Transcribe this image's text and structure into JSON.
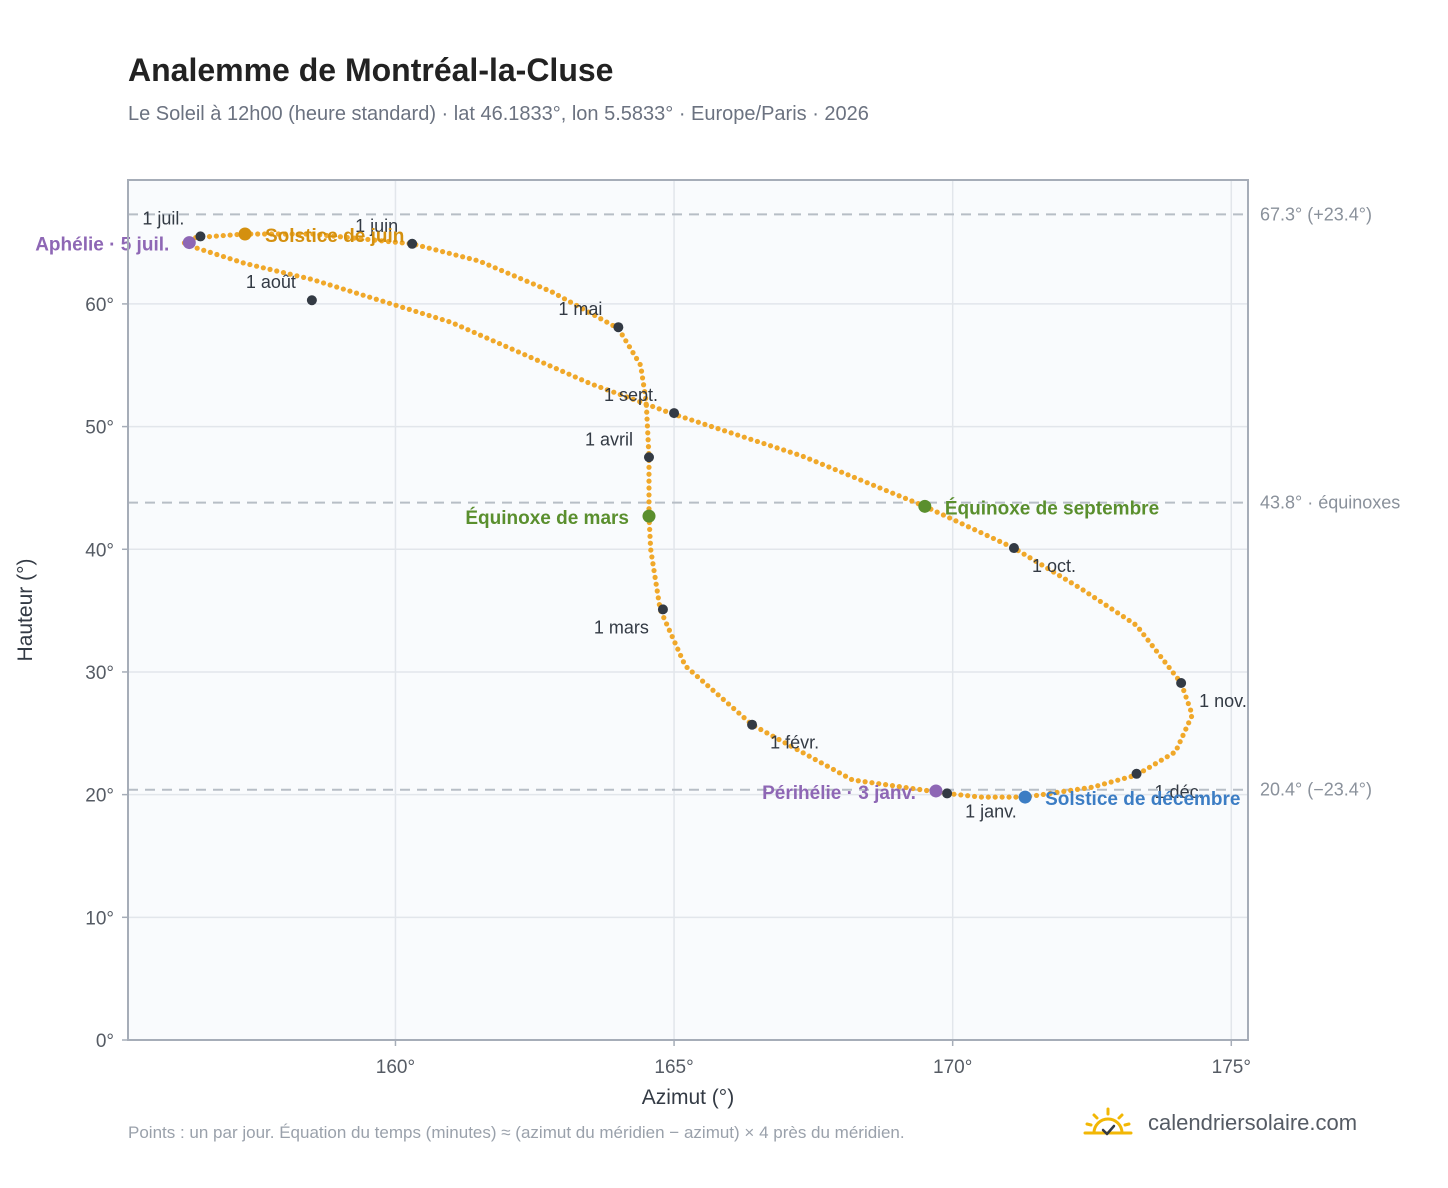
{
  "header": {
    "title": "Analemme de Montréal-la-Cluse",
    "subtitle": "Le Soleil à 12h00 (heure standard) · lat 46.1833°, lon 5.5833° · Europe/Paris · 2026"
  },
  "footer": {
    "note": "Points : un par jour. Équation du temps (minutes) ≈ (azimut du méridien − azimut) × 4 près du méridien.",
    "brand": "calendriersolaire.com"
  },
  "colors": {
    "path": "#f0a82a",
    "monthMarker": "#333a44",
    "solsticeJune": "#d4900f",
    "solsticeDecember": "#3c7dc4",
    "equinox": "#5a8f2e",
    "apsis": "#8e67b5",
    "grid": "#e2e6eb",
    "frame": "#a6adb8",
    "refLine": "#b7bec6",
    "plotBg": "#f9fbfd",
    "brandSun": "#f2b705"
  },
  "icons": {
    "brand": "sun-check-icon"
  },
  "chart_data": {
    "type": "scatter",
    "xlabel": "Azimut (°)",
    "ylabel": "Hauteur (°)",
    "xlim": [
      155.2,
      175.3
    ],
    "ylim": [
      0,
      70.1
    ],
    "xticks": [
      160,
      165,
      170,
      175
    ],
    "xtick_labels": [
      "160°",
      "165°",
      "170°",
      "175°"
    ],
    "yticks": [
      0,
      10,
      20,
      30,
      40,
      50,
      60
    ],
    "ytick_labels": [
      "0°",
      "10°",
      "20°",
      "30°",
      "40°",
      "50°",
      "60°"
    ],
    "grid": true,
    "reference_lines": [
      {
        "y": 67.3,
        "label": "67.3° (+23.4°)"
      },
      {
        "y": 43.8,
        "label": "43.8° · équinoxes"
      },
      {
        "y": 20.4,
        "label": "20.4° (−23.4°)"
      }
    ],
    "analemma_path": [
      [
        169.9,
        20.1
      ],
      [
        168.2,
        21.2
      ],
      [
        166.4,
        25.7
      ],
      [
        165.2,
        30.5
      ],
      [
        164.75,
        35.1
      ],
      [
        164.58,
        40.0
      ],
      [
        164.55,
        42.7
      ],
      [
        164.55,
        47.5
      ],
      [
        164.5,
        52.0
      ],
      [
        164.4,
        55.0
      ],
      [
        164.0,
        58.0
      ],
      [
        162.8,
        61.0
      ],
      [
        161.5,
        63.5
      ],
      [
        160.3,
        64.9
      ],
      [
        158.5,
        65.7
      ],
      [
        157.3,
        65.7
      ],
      [
        156.4,
        65.4
      ],
      [
        156.2,
        65.0
      ],
      [
        156.4,
        64.6
      ],
      [
        157.3,
        63.3
      ],
      [
        158.5,
        62.0
      ],
      [
        161.0,
        58.5
      ],
      [
        163.5,
        53.5
      ],
      [
        165.0,
        51.0
      ],
      [
        167.3,
        47.6
      ],
      [
        169.5,
        43.5
      ],
      [
        171.1,
        40.1
      ],
      [
        172.3,
        36.8
      ],
      [
        173.3,
        33.8
      ],
      [
        174.1,
        29.1
      ],
      [
        174.3,
        26.5
      ],
      [
        174.0,
        23.5
      ],
      [
        173.3,
        21.6
      ],
      [
        172.5,
        20.6
      ],
      [
        171.3,
        19.8
      ],
      [
        170.5,
        19.8
      ],
      [
        169.9,
        20.1
      ]
    ],
    "month_markers": [
      {
        "label": "1 janv.",
        "azimuth": 169.9,
        "altitude": 20.1
      },
      {
        "label": "1 févr.",
        "azimuth": 166.4,
        "altitude": 25.7
      },
      {
        "label": "1 mars",
        "azimuth": 164.8,
        "altitude": 35.1
      },
      {
        "label": "1 avril",
        "azimuth": 164.55,
        "altitude": 47.5
      },
      {
        "label": "1 mai",
        "azimuth": 164.0,
        "altitude": 58.1
      },
      {
        "label": "1 juin",
        "azimuth": 160.3,
        "altitude": 64.9
      },
      {
        "label": "1 juil.",
        "azimuth": 156.5,
        "altitude": 65.5
      },
      {
        "label": "1 août",
        "azimuth": 158.5,
        "altitude": 60.3
      },
      {
        "label": "1 sept.",
        "azimuth": 165.0,
        "altitude": 51.1
      },
      {
        "label": "1 oct.",
        "azimuth": 171.1,
        "altitude": 40.1
      },
      {
        "label": "1 nov.",
        "azimuth": 174.1,
        "altitude": 29.1
      },
      {
        "label": "1 déc.",
        "azimuth": 173.3,
        "altitude": 21.7
      }
    ],
    "events": [
      {
        "label": "Solstice de juin",
        "azimuth": 157.3,
        "altitude": 65.7,
        "color": "#d4900f"
      },
      {
        "label": "Équinoxe de mars",
        "azimuth": 164.55,
        "altitude": 42.7,
        "color": "#5a8f2e"
      },
      {
        "label": "Équinoxe de septembre",
        "azimuth": 169.5,
        "altitude": 43.5,
        "color": "#5a8f2e"
      },
      {
        "label": "Solstice de décembre",
        "azimuth": 171.3,
        "altitude": 19.8,
        "color": "#3c7dc4"
      },
      {
        "label": "Aphélie · 5 juil.",
        "azimuth": 156.3,
        "altitude": 65.0,
        "color": "#8e67b5"
      },
      {
        "label": "Périhélie · 3 janv.",
        "azimuth": 169.7,
        "altitude": 20.3,
        "color": "#8e67b5"
      }
    ]
  }
}
